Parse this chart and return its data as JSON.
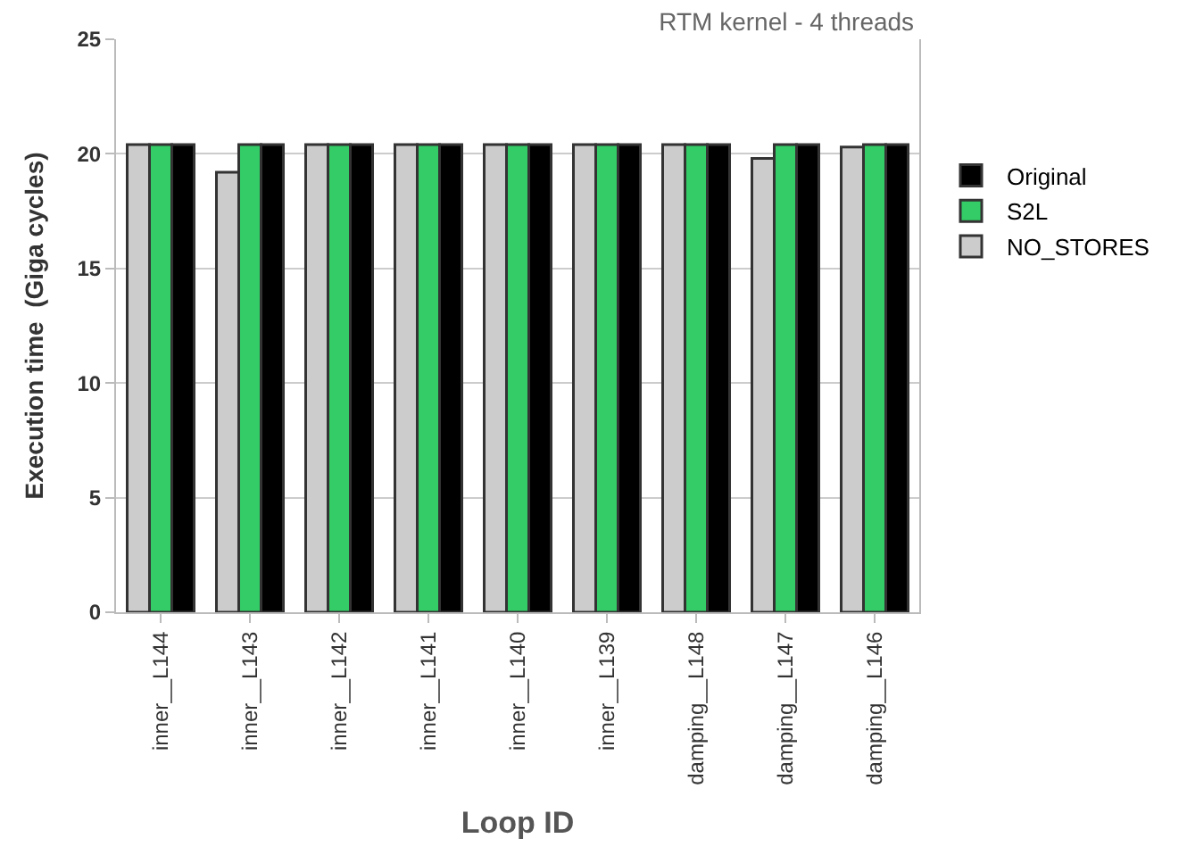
{
  "chart_data": {
    "type": "bar",
    "title": "RTM kernel - 4 threads",
    "xlabel": "Loop ID",
    "ylabel": "Execution time  (Giga cycles)",
    "categories": [
      "inner__L144",
      "inner__L143",
      "inner__L142",
      "inner__L141",
      "inner__L140",
      "inner__L139",
      "damping__L148",
      "damping__L147",
      "damping__L146"
    ],
    "series": [
      {
        "name": "NO_STORES",
        "color": "#cccccc",
        "values": [
          20.4,
          19.2,
          20.4,
          20.4,
          20.4,
          20.4,
          20.4,
          19.8,
          20.3
        ]
      },
      {
        "name": "S2L",
        "color": "#33cc66",
        "values": [
          20.4,
          20.4,
          20.4,
          20.4,
          20.4,
          20.4,
          20.4,
          20.4,
          20.4
        ]
      },
      {
        "name": "Original",
        "color": "#000000",
        "values": [
          20.4,
          20.4,
          20.4,
          20.4,
          20.4,
          20.4,
          20.4,
          20.4,
          20.4
        ]
      }
    ],
    "ylim": [
      0,
      25
    ],
    "yticks": [
      0,
      5,
      10,
      15,
      20,
      25
    ],
    "grid": "y",
    "legend": "right"
  }
}
